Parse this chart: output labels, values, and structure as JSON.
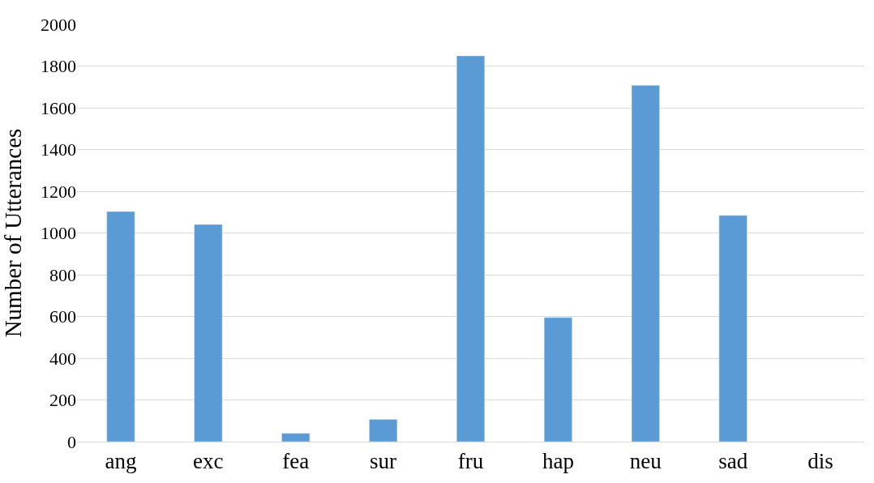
{
  "chart_data": {
    "type": "bar",
    "ylabel": "Number of Utterances",
    "categories": [
      "ang",
      "exc",
      "fea",
      "sur",
      "fru",
      "hap",
      "neu",
      "sad",
      "dis"
    ],
    "values": [
      1103,
      1041,
      40,
      107,
      1849,
      595,
      1708,
      1084,
      null
    ],
    "color": "#5b9bd5",
    "ylim": [
      0,
      2000
    ],
    "yticks": [
      0,
      200,
      400,
      600,
      800,
      1000,
      1200,
      1400,
      1600,
      1800,
      2000
    ],
    "grid": "y",
    "legend": false
  }
}
